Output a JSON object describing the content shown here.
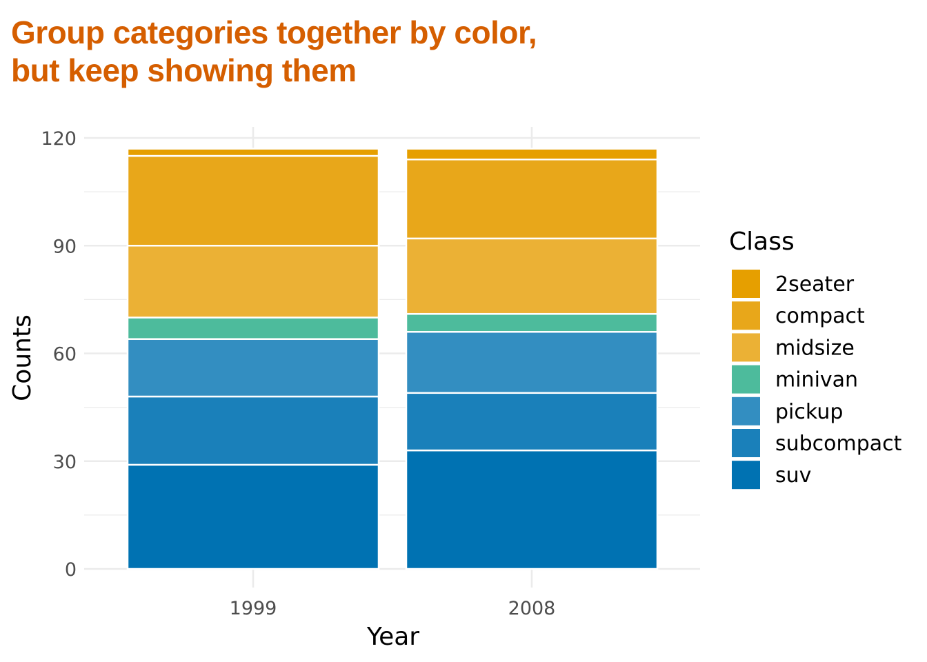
{
  "title": {
    "line1": "Group categories together by color,",
    "line2": "but keep showing them"
  },
  "chart_data": {
    "type": "bar",
    "stacked": true,
    "categories": [
      "1999",
      "2008"
    ],
    "series": [
      {
        "name": "suv",
        "values": [
          29,
          33
        ],
        "color": "#0072B2"
      },
      {
        "name": "subcompact",
        "values": [
          19,
          16
        ],
        "color": "#1A80BA"
      },
      {
        "name": "pickup",
        "values": [
          16,
          17
        ],
        "color": "#338EC1"
      },
      {
        "name": "minivan",
        "values": [
          6,
          5
        ],
        "color": "#4DBB9C"
      },
      {
        "name": "midsize",
        "values": [
          20,
          21
        ],
        "color": "#EBB135"
      },
      {
        "name": "compact",
        "values": [
          25,
          22
        ],
        "color": "#E8A71A"
      },
      {
        "name": "2seater",
        "values": [
          2,
          3
        ],
        "color": "#E69F00"
      }
    ],
    "xlabel": "Year",
    "ylabel": "Counts",
    "ylim": [
      0,
      120
    ],
    "yticks": [
      "0",
      "30",
      "60",
      "90",
      "120"
    ],
    "legend_title": "Class",
    "legend_order": [
      "2seater",
      "compact",
      "midsize",
      "minivan",
      "pickup",
      "subcompact",
      "suv"
    ],
    "legend_position": "right",
    "grid": true,
    "title_color": "#D55E00"
  }
}
